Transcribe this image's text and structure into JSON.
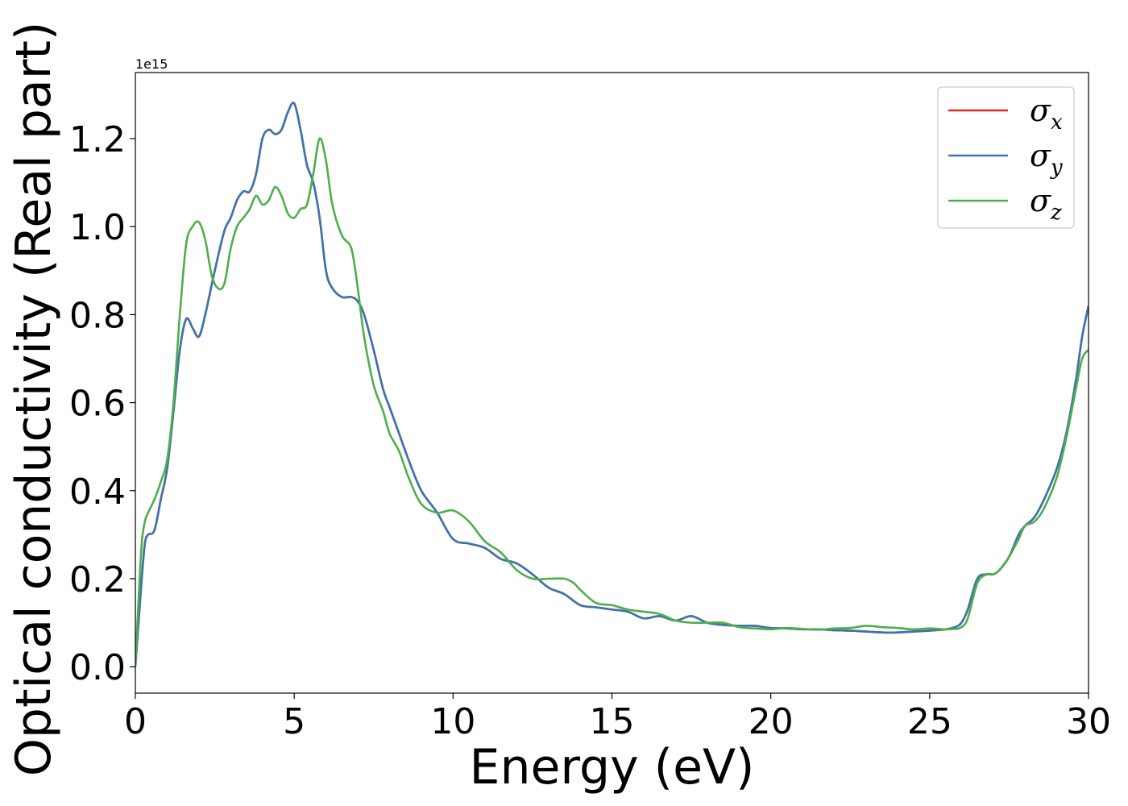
{
  "chart_data": {
    "type": "line",
    "title": "",
    "xlabel": "Energy (eV)",
    "ylabel": "Optical conductivity (Real part)",
    "y_offset_label": "1e15",
    "xlim": [
      0,
      30
    ],
    "ylim": [
      -0.06,
      1.35
    ],
    "x_ticks": [
      0,
      5,
      10,
      15,
      20,
      25,
      30
    ],
    "x_tick_labels": [
      "0",
      "5",
      "10",
      "15",
      "20",
      "25",
      "30"
    ],
    "y_ticks": [
      0.0,
      0.2,
      0.4,
      0.6,
      0.8,
      1.0,
      1.2
    ],
    "y_tick_labels": [
      "0.0",
      "0.2",
      "0.4",
      "0.6",
      "0.8",
      "1.0",
      "1.2"
    ],
    "grid": false,
    "legend_position": "top-right",
    "series": [
      {
        "name": "σx",
        "legend_symbol": "σ",
        "legend_sub": "x",
        "color": "#d62728",
        "x": [
          0,
          0.1,
          0.2,
          0.3,
          0.4,
          0.6,
          0.8,
          1.0,
          1.2,
          1.4,
          1.6,
          1.8,
          2.0,
          2.2,
          2.5,
          2.8,
          3.0,
          3.2,
          3.4,
          3.6,
          3.8,
          4.0,
          4.2,
          4.4,
          4.6,
          4.8,
          5.0,
          5.2,
          5.4,
          5.6,
          5.8,
          6.0,
          6.2,
          6.5,
          6.8,
          7.0,
          7.2,
          7.5,
          7.8,
          8.0,
          8.3,
          8.6,
          9.0,
          9.5,
          10.0,
          10.5,
          11.0,
          11.5,
          12.0,
          12.5,
          13.0,
          13.5,
          14.0,
          14.5,
          15.0,
          15.5,
          16.0,
          16.5,
          17.0,
          17.5,
          18.0,
          18.5,
          19.0,
          19.5,
          20.0,
          20.5,
          21.0,
          21.5,
          22.0,
          22.5,
          23.0,
          23.5,
          24.0,
          24.5,
          25.0,
          25.5,
          25.8,
          26.0,
          26.2,
          26.5,
          26.8,
          27.0,
          27.2,
          27.5,
          27.8,
          28.0,
          28.3,
          28.6,
          29.0,
          29.3,
          29.6,
          29.8,
          30.0
        ],
        "y": [
          0.0,
          0.1,
          0.2,
          0.28,
          0.3,
          0.31,
          0.38,
          0.45,
          0.58,
          0.72,
          0.79,
          0.77,
          0.75,
          0.8,
          0.9,
          0.99,
          1.02,
          1.06,
          1.08,
          1.08,
          1.12,
          1.2,
          1.22,
          1.21,
          1.22,
          1.26,
          1.28,
          1.22,
          1.14,
          1.1,
          1.02,
          0.9,
          0.86,
          0.84,
          0.84,
          0.83,
          0.8,
          0.72,
          0.63,
          0.59,
          0.53,
          0.47,
          0.4,
          0.35,
          0.29,
          0.28,
          0.27,
          0.245,
          0.235,
          0.21,
          0.18,
          0.165,
          0.14,
          0.135,
          0.13,
          0.125,
          0.11,
          0.115,
          0.105,
          0.115,
          0.1,
          0.095,
          0.093,
          0.093,
          0.088,
          0.087,
          0.085,
          0.085,
          0.083,
          0.082,
          0.08,
          0.078,
          0.078,
          0.08,
          0.082,
          0.085,
          0.09,
          0.1,
          0.13,
          0.2,
          0.21,
          0.21,
          0.22,
          0.25,
          0.3,
          0.32,
          0.34,
          0.38,
          0.45,
          0.53,
          0.65,
          0.75,
          0.82
        ]
      },
      {
        "name": "σy",
        "legend_symbol": "σ",
        "legend_sub": "y",
        "color": "#3b75af",
        "x": [
          0,
          0.1,
          0.2,
          0.3,
          0.4,
          0.6,
          0.8,
          1.0,
          1.2,
          1.4,
          1.6,
          1.8,
          2.0,
          2.2,
          2.5,
          2.8,
          3.0,
          3.2,
          3.4,
          3.6,
          3.8,
          4.0,
          4.2,
          4.4,
          4.6,
          4.8,
          5.0,
          5.2,
          5.4,
          5.6,
          5.8,
          6.0,
          6.2,
          6.5,
          6.8,
          7.0,
          7.2,
          7.5,
          7.8,
          8.0,
          8.3,
          8.6,
          9.0,
          9.5,
          10.0,
          10.5,
          11.0,
          11.5,
          12.0,
          12.5,
          13.0,
          13.5,
          14.0,
          14.5,
          15.0,
          15.5,
          16.0,
          16.5,
          17.0,
          17.5,
          18.0,
          18.5,
          19.0,
          19.5,
          20.0,
          20.5,
          21.0,
          21.5,
          22.0,
          22.5,
          23.0,
          23.5,
          24.0,
          24.5,
          25.0,
          25.5,
          25.8,
          26.0,
          26.2,
          26.5,
          26.8,
          27.0,
          27.2,
          27.5,
          27.8,
          28.0,
          28.3,
          28.6,
          29.0,
          29.3,
          29.6,
          29.8,
          30.0
        ],
        "y": [
          0.0,
          0.1,
          0.2,
          0.28,
          0.3,
          0.31,
          0.38,
          0.45,
          0.58,
          0.72,
          0.79,
          0.77,
          0.75,
          0.8,
          0.9,
          0.99,
          1.02,
          1.06,
          1.08,
          1.08,
          1.12,
          1.2,
          1.22,
          1.21,
          1.22,
          1.26,
          1.28,
          1.22,
          1.14,
          1.1,
          1.02,
          0.9,
          0.86,
          0.84,
          0.84,
          0.83,
          0.8,
          0.72,
          0.63,
          0.59,
          0.53,
          0.47,
          0.4,
          0.35,
          0.29,
          0.28,
          0.27,
          0.245,
          0.235,
          0.21,
          0.18,
          0.165,
          0.14,
          0.135,
          0.13,
          0.125,
          0.11,
          0.115,
          0.105,
          0.115,
          0.1,
          0.095,
          0.093,
          0.093,
          0.088,
          0.087,
          0.085,
          0.085,
          0.083,
          0.082,
          0.08,
          0.078,
          0.078,
          0.08,
          0.082,
          0.085,
          0.09,
          0.1,
          0.13,
          0.2,
          0.21,
          0.21,
          0.22,
          0.25,
          0.3,
          0.32,
          0.34,
          0.38,
          0.45,
          0.53,
          0.65,
          0.75,
          0.82
        ]
      },
      {
        "name": "σz",
        "legend_symbol": "σ",
        "legend_sub": "z",
        "color": "#4daf4a",
        "x": [
          0,
          0.1,
          0.2,
          0.3,
          0.4,
          0.6,
          0.8,
          1.0,
          1.2,
          1.4,
          1.6,
          1.8,
          2.0,
          2.2,
          2.4,
          2.6,
          2.8,
          3.0,
          3.2,
          3.4,
          3.6,
          3.8,
          4.0,
          4.2,
          4.4,
          4.6,
          4.8,
          5.0,
          5.2,
          5.4,
          5.6,
          5.8,
          6.0,
          6.2,
          6.5,
          6.8,
          7.0,
          7.2,
          7.5,
          7.8,
          8.0,
          8.3,
          8.6,
          9.0,
          9.5,
          10.0,
          10.5,
          11.0,
          11.5,
          12.0,
          12.5,
          13.0,
          13.5,
          13.8,
          14.0,
          14.5,
          15.0,
          15.5,
          16.0,
          16.5,
          17.0,
          17.5,
          18.0,
          18.5,
          19.0,
          19.5,
          20.0,
          20.5,
          21.0,
          21.5,
          22.0,
          22.5,
          23.0,
          23.5,
          24.0,
          24.5,
          25.0,
          25.5,
          25.8,
          26.0,
          26.2,
          26.5,
          26.8,
          27.0,
          27.2,
          27.5,
          27.8,
          28.0,
          28.3,
          28.6,
          29.0,
          29.3,
          29.6,
          29.8,
          30.0
        ],
        "y": [
          0.0,
          0.15,
          0.28,
          0.33,
          0.35,
          0.38,
          0.42,
          0.47,
          0.6,
          0.8,
          0.96,
          1.0,
          1.01,
          0.97,
          0.89,
          0.86,
          0.87,
          0.95,
          1.0,
          1.02,
          1.04,
          1.07,
          1.05,
          1.06,
          1.09,
          1.07,
          1.03,
          1.02,
          1.04,
          1.05,
          1.12,
          1.2,
          1.15,
          1.05,
          0.98,
          0.95,
          0.86,
          0.75,
          0.64,
          0.58,
          0.53,
          0.49,
          0.43,
          0.37,
          0.35,
          0.355,
          0.33,
          0.285,
          0.26,
          0.22,
          0.2,
          0.2,
          0.2,
          0.19,
          0.175,
          0.145,
          0.14,
          0.13,
          0.125,
          0.12,
          0.105,
          0.1,
          0.1,
          0.1,
          0.09,
          0.087,
          0.085,
          0.088,
          0.086,
          0.084,
          0.087,
          0.088,
          0.093,
          0.09,
          0.088,
          0.085,
          0.087,
          0.085,
          0.086,
          0.09,
          0.11,
          0.19,
          0.21,
          0.21,
          0.22,
          0.25,
          0.29,
          0.32,
          0.33,
          0.36,
          0.43,
          0.52,
          0.63,
          0.7,
          0.72
        ]
      }
    ]
  }
}
